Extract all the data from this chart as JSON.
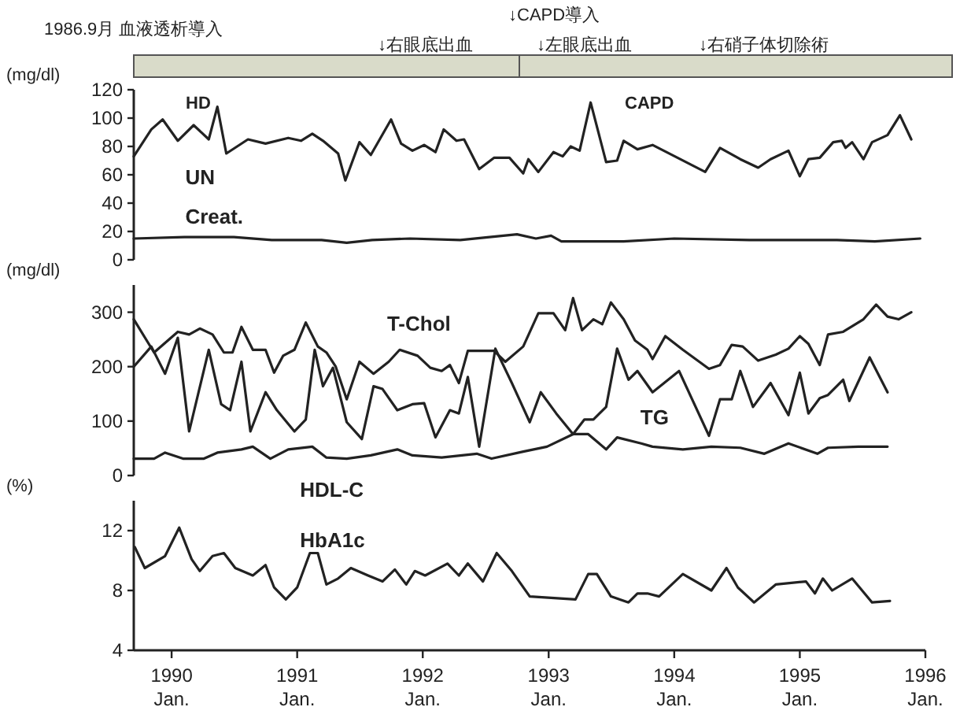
{
  "chart_data": [
    {
      "type": "line",
      "ylabel": "(mg/dl)",
      "xlim": [
        "1989-09-13",
        "1996-01-01"
      ],
      "ylim": [
        0,
        120
      ],
      "yticks": [
        0,
        20,
        40,
        60,
        80,
        100,
        120
      ],
      "tick_labels": "y",
      "annotations": [
        "1986.9月 血液透析導入",
        "↓右眼底出血",
        "↓CAPD導入",
        "↓左眼底出血",
        "↓右硝子体切除術",
        "HD",
        "CAPD"
      ],
      "series": [
        {
          "name": "UN",
          "color": "#222222",
          "x": [
            "1989-09-13",
            "1989-11-03",
            "1989-12-06",
            "1990-01-19",
            "1990-03-06",
            "1990-04-19",
            "1990-05-14",
            "1990-06-09",
            "1990-08-11",
            "1990-10-01",
            "1990-12-06",
            "1991-01-12",
            "1991-02-14",
            "1991-03-17",
            "1991-04-30",
            "1991-05-21",
            "1991-07-01",
            "1991-08-03",
            "1991-10-01",
            "1991-10-30",
            "1991-12-02",
            "1992-01-05",
            "1992-02-07",
            "1992-03-02",
            "1992-04-08",
            "1992-04-30",
            "1992-06-13",
            "1992-07-26",
            "1992-09-09",
            "1992-10-19",
            "1992-11-03",
            "1992-12-02",
            "1993-01-15",
            "1993-02-11",
            "1993-03-06",
            "1993-04-01",
            "1993-05-03",
            "1993-06-17",
            "1993-07-19",
            "1993-08-07",
            "1993-09-16",
            "1993-10-30",
            "1994-04-01",
            "1994-05-14",
            "1994-07-12",
            "1994-09-02",
            "1994-10-08",
            "1994-11-29",
            "1995-01-01",
            "1995-01-26",
            "1995-02-28",
            "1995-04-08",
            "1995-05-03",
            "1995-05-14",
            "1995-06-02",
            "1995-07-05",
            "1995-07-30",
            "1995-09-13",
            "1995-10-19",
            "1995-11-21"
          ],
          "values": [
            73,
            92,
            99,
            84,
            95,
            85,
            108,
            75,
            85,
            82,
            86,
            84,
            89,
            84,
            75,
            56,
            83,
            74,
            99,
            82,
            77,
            81,
            76,
            92,
            84,
            85,
            64,
            72,
            72,
            61,
            71,
            62,
            76,
            73,
            80,
            77,
            111,
            69,
            70,
            84,
            78,
            81,
            62,
            79,
            71,
            65,
            71,
            77,
            59,
            71,
            72,
            83,
            84,
            79,
            83,
            71,
            83,
            88,
            102,
            85
          ]
        },
        {
          "name": "Creat.",
          "color": "#222222",
          "x": [
            "1989-09-13",
            "1990-02-07",
            "1990-07-01",
            "1990-10-19",
            "1991-03-13",
            "1991-05-25",
            "1991-08-07",
            "1991-11-25",
            "1992-04-19",
            "1992-10-01",
            "1992-11-25",
            "1993-01-08",
            "1993-02-07",
            "1993-08-07",
            "1994-01-01",
            "1994-08-07",
            "1995-01-01",
            "1995-04-19",
            "1995-08-07",
            "1995-12-17"
          ],
          "values": [
            15,
            16,
            16,
            14,
            14,
            12,
            14,
            15,
            14,
            18,
            15,
            17,
            13,
            13,
            15,
            14,
            14,
            14,
            13,
            15
          ]
        }
      ]
    },
    {
      "type": "line",
      "ylabel": "(mg/dl)",
      "xlim": [
        "1989-09-13",
        "1996-01-01"
      ],
      "ylim": [
        0,
        350
      ],
      "yticks": [
        0,
        100,
        200,
        300
      ],
      "tick_labels": "y",
      "series": [
        {
          "name": "T-Chol",
          "color": "#222222",
          "x": [
            "1989-09-13",
            "1989-11-11",
            "1990-01-19",
            "1990-02-21",
            "1990-03-24",
            "1990-04-30",
            "1990-06-02",
            "1990-06-27",
            "1990-07-23",
            "1990-08-25",
            "1990-10-01",
            "1990-10-26",
            "1990-11-21",
            "1990-12-24",
            "1991-01-26",
            "1991-03-02",
            "1991-03-27",
            "1991-04-23",
            "1991-05-25",
            "1991-07-01",
            "1991-08-11",
            "1991-09-24",
            "1991-10-26",
            "1991-12-17",
            "1992-01-23",
            "1992-02-25",
            "1992-03-20",
            "1992-04-15",
            "1992-05-11",
            "1992-07-26",
            "1992-08-28",
            "1992-10-19",
            "1992-12-02",
            "1993-01-15",
            "1993-02-18",
            "1993-03-13",
            "1993-04-08",
            "1993-05-11",
            "1993-06-06",
            "1993-07-01",
            "1993-08-07",
            "1993-09-09",
            "1993-10-15",
            "1993-10-30",
            "1993-12-06",
            "1994-01-26",
            "1994-04-12",
            "1994-05-14",
            "1994-06-17",
            "1994-07-19",
            "1994-09-02",
            "1994-10-23",
            "1994-11-29",
            "1995-01-01",
            "1995-01-26",
            "1995-02-28",
            "1995-03-24",
            "1995-05-07",
            "1995-06-20",
            "1995-07-05",
            "1995-08-11",
            "1995-09-13",
            "1995-10-15",
            "1995-11-21"
          ],
          "values": [
            287,
            226,
            264,
            259,
            270,
            259,
            226,
            226,
            273,
            231,
            231,
            189,
            220,
            231,
            281,
            237,
            226,
            200,
            140,
            209,
            187,
            209,
            231,
            220,
            198,
            192,
            203,
            170,
            229,
            229,
            209,
            237,
            298,
            298,
            267,
            326,
            267,
            287,
            278,
            318,
            287,
            248,
            231,
            214,
            256,
            231,
            196,
            203,
            240,
            237,
            211,
            222,
            233,
            256,
            242,
            203,
            259,
            264,
            281,
            287,
            314,
            292,
            287,
            300
          ]
        },
        {
          "name": "TG",
          "color": "#222222",
          "x": [
            "1989-09-13",
            "1989-11-03",
            "1989-12-13",
            "1990-01-19",
            "1990-02-21",
            "1990-04-19",
            "1990-05-25",
            "1990-06-20",
            "1990-07-23",
            "1990-08-18",
            "1990-10-01",
            "1990-11-03",
            "1990-12-24",
            "1991-01-26",
            "1991-02-21",
            "1991-03-17",
            "1991-04-15",
            "1991-05-25",
            "1991-07-08",
            "1991-08-11",
            "1991-09-06",
            "1991-10-19",
            "1991-12-02",
            "1992-01-05",
            "1992-02-07",
            "1992-03-20",
            "1992-04-15",
            "1992-05-11",
            "1992-06-13",
            "1992-07-30",
            "1992-09-16",
            "1992-11-07",
            "1992-12-09",
            "1993-01-23",
            "1993-03-13",
            "1993-04-15",
            "1993-05-11",
            "1993-06-17",
            "1993-07-19",
            "1993-08-21",
            "1993-09-16",
            "1993-10-30",
            "1994-01-15",
            "1994-04-12",
            "1994-05-14",
            "1994-06-17",
            "1994-07-12",
            "1994-08-18",
            "1994-10-08",
            "1994-11-29",
            "1995-01-01",
            "1995-01-26",
            "1995-02-28",
            "1995-03-24",
            "1995-05-07",
            "1995-05-25",
            "1995-07-23",
            "1995-09-13"
          ],
          "values": [
            200,
            237,
            187,
            253,
            81,
            231,
            131,
            120,
            209,
            81,
            153,
            120,
            81,
            103,
            231,
            164,
            198,
            98,
            67,
            164,
            159,
            120,
            131,
            133,
            70,
            120,
            114,
            181,
            53,
            233,
            170,
            98,
            153,
            114,
            76,
            103,
            103,
            126,
            233,
            176,
            192,
            153,
            192,
            73,
            140,
            140,
            192,
            126,
            170,
            111,
            189,
            114,
            142,
            148,
            176,
            137,
            217,
            153
          ]
        },
        {
          "name": "HDL-C",
          "color": "#222222",
          "x": [
            "1989-09-13",
            "1989-11-11",
            "1989-12-13",
            "1990-02-03",
            "1990-04-05",
            "1990-05-14",
            "1990-07-23",
            "1990-08-25",
            "1990-10-15",
            "1990-12-06",
            "1991-02-14",
            "1991-03-27",
            "1991-05-25",
            "1991-08-03",
            "1991-10-19",
            "1991-12-02",
            "1992-02-25",
            "1992-06-06",
            "1992-07-19",
            "1992-10-19",
            "1992-12-27",
            "1993-03-13",
            "1993-04-26",
            "1993-06-17",
            "1993-07-19",
            "1993-09-27",
            "1993-10-30",
            "1994-01-26",
            "1994-04-19",
            "1994-07-12",
            "1994-09-20",
            "1994-11-29",
            "1995-02-21",
            "1995-03-24",
            "1995-06-20",
            "1995-09-13"
          ],
          "values": [
            31,
            31,
            42,
            31,
            31,
            42,
            48,
            53,
            31,
            48,
            53,
            33,
            31,
            37,
            48,
            37,
            33,
            40,
            31,
            44,
            53,
            76,
            76,
            48,
            70,
            59,
            53,
            48,
            53,
            51,
            40,
            59,
            40,
            51,
            53,
            53
          ]
        }
      ]
    },
    {
      "type": "line",
      "ylabel": "(%)",
      "xlim": [
        "1989-09-13",
        "1996-01-01"
      ],
      "ylim": [
        4,
        14
      ],
      "yticks": [
        4,
        8,
        12
      ],
      "xticks": [
        {
          "value": "1990-01-01",
          "label": "1990 Jan."
        },
        {
          "value": "1991-01-01",
          "label": "1991 Jan."
        },
        {
          "value": "1992-01-01",
          "label": "1992 Jan."
        },
        {
          "value": "1993-01-01",
          "label": "1993 Jan."
        },
        {
          "value": "1994-01-01",
          "label": "1994 Jan."
        },
        {
          "value": "1995-01-01",
          "label": "1995 Jan."
        },
        {
          "value": "1996-01-01",
          "label": "1996 Jan."
        }
      ],
      "series": [
        {
          "name": "HbA1c",
          "color": "#222222",
          "x": [
            "1989-09-16",
            "1989-10-15",
            "1989-12-13",
            "1990-01-23",
            "1990-02-28",
            "1990-03-24",
            "1990-04-30",
            "1990-06-02",
            "1990-07-05",
            "1990-08-25",
            "1990-10-01",
            "1990-10-26",
            "1990-11-29",
            "1991-01-01",
            "1991-02-07",
            "1991-03-02",
            "1991-03-27",
            "1991-04-30",
            "1991-06-06",
            "1991-07-26",
            "1991-09-06",
            "1991-10-12",
            "1991-11-14",
            "1991-12-09",
            "1992-01-08",
            "1992-03-13",
            "1992-04-15",
            "1992-05-11",
            "1992-06-24",
            "1992-08-03",
            "1992-09-16",
            "1992-11-07",
            "1993-03-20",
            "1993-04-26",
            "1993-05-21",
            "1993-07-01",
            "1993-08-21",
            "1993-09-16",
            "1993-10-15",
            "1993-11-18",
            "1994-01-26",
            "1994-04-19",
            "1994-06-02",
            "1994-07-05",
            "1994-08-21",
            "1994-10-23",
            "1995-01-19",
            "1995-02-14",
            "1995-03-09",
            "1995-04-05",
            "1995-06-02",
            "1995-07-30",
            "1995-09-20"
          ],
          "values": [
            10.9,
            9.5,
            10.3,
            12.2,
            10.1,
            9.3,
            10.3,
            10.5,
            9.5,
            9.0,
            9.7,
            8.2,
            7.4,
            8.2,
            10.5,
            10.5,
            8.4,
            8.8,
            9.5,
            9.0,
            8.6,
            9.4,
            8.4,
            9.3,
            9.0,
            9.8,
            9.0,
            9.8,
            8.6,
            10.5,
            9.3,
            7.6,
            7.4,
            9.1,
            9.1,
            7.6,
            7.2,
            7.8,
            7.8,
            7.6,
            9.1,
            8.0,
            9.5,
            8.2,
            7.2,
            8.4,
            8.6,
            7.8,
            8.8,
            8.0,
            8.8,
            7.2,
            7.3
          ]
        }
      ]
    }
  ]
}
